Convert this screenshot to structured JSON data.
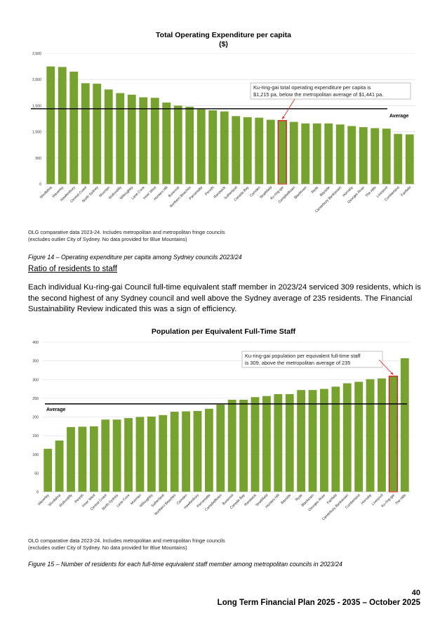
{
  "charts": [
    {
      "title_line1": "Total Operating Expenditure per capita",
      "title_line2": "($)",
      "note_line1": "OLG comparative data 2023-24. Includes metropolitan and metropolitan fringe councils",
      "note_line2": "(excludes outlier City of Sydney. No data provided for Blue Mountains)",
      "caption": "Figure 14 – Operating expenditure per capita among Sydney councils 2023/24",
      "average_label": "Average",
      "annotation_line1": "Ku-ring-gai total operating expenditure per capita is",
      "annotation_line2": "$1,215 pa, below the metropolitan average of $1,441 pa."
    },
    {
      "title_line1": "Population per Equivalent Full-Time Staff",
      "note_line1": "OLG comparative data 2023-24. Includes metropolitan and metropolitan fringe councils",
      "note_line2": "(excludes outlier City of Sydney. No data provided for Blue Mountains)",
      "caption": "Figure 15 – Number of residents for each full-time equivalent staff member among metropolitan councils in 2023/24",
      "average_label": "Average",
      "annotation_line1": "Ku-ring-gai population per equivalent full-time staff",
      "annotation_line2": "is 309, above the metropolitan average of 235"
    }
  ],
  "text": {
    "heading": "Ratio of residents to staff",
    "paragraph": "Each individual Ku-ring-gai Council full-time equivalent staff member in 2023/24 serviced 309 residents, which is the second highest of any Sydney council and well above the Sydney average of 235 residents. The Financial Sustainability Review indicated this was a sign of efficiency.",
    "page_number": "40",
    "footer": "Long Term Financial Plan 2025 - 2035 – October 2025"
  },
  "colors": {
    "bar": "#78a22f",
    "highlight_border": "#e02020",
    "average_line": "#000000",
    "arrow": "#e02020"
  },
  "chart_data": [
    {
      "type": "bar",
      "title": "Total Operating Expenditure per capita ($)",
      "ylim": [
        0,
        2500
      ],
      "yticks": [
        0,
        500,
        1000,
        1500,
        2000,
        2500
      ],
      "yticks_labels": [
        "0",
        "500",
        "1,000",
        "1,500",
        "2,000",
        "2,500"
      ],
      "grid": true,
      "average": 1441,
      "highlight": "Ku-ring-gai",
      "categories": [
        "Woollahra",
        "Waverley",
        "Hawkesbury",
        "Central Coast",
        "North Sydney",
        "Mosman",
        "Wollondilly",
        "Willoughby",
        "Lane Cove",
        "Inner West",
        "Hunters Hill",
        "Burwood",
        "Northern Beaches",
        "Parramatta",
        "Penrith",
        "Randwick",
        "Sutherland",
        "Canada Bay",
        "Camden",
        "Strathfield",
        "Ku-ring-gai",
        "Campbelltown",
        "Blacktown",
        "Ryde",
        "Bayside",
        "Canterbury Bankstown",
        "Hornsby",
        "Georges River",
        "The Hills",
        "Liverpool",
        "Cumberland",
        "Fairfield"
      ],
      "values": [
        2250,
        2240,
        2150,
        1930,
        1920,
        1810,
        1740,
        1710,
        1660,
        1650,
        1560,
        1500,
        1480,
        1430,
        1410,
        1390,
        1300,
        1280,
        1270,
        1230,
        1215,
        1190,
        1160,
        1160,
        1160,
        1140,
        1110,
        1090,
        1070,
        1060,
        960,
        950
      ]
    },
    {
      "type": "bar",
      "title": "Population per Equivalent Full-Time Staff",
      "ylim": [
        0,
        400
      ],
      "yticks": [
        0,
        50,
        100,
        150,
        200,
        250,
        300,
        350,
        400
      ],
      "yticks_labels": [
        "0",
        "50",
        "100",
        "150",
        "200",
        "250",
        "300",
        "350",
        "400"
      ],
      "grid": true,
      "average": 235,
      "highlight": "Ku-ring-gai",
      "categories": [
        "Waverley",
        "Woollahra",
        "Wollondilly",
        "Penrith",
        "Inner West",
        "Central Coast",
        "North Sydney",
        "Lane Cove",
        "Mosman",
        "Willoughby",
        "Sutherland",
        "Northern Beaches",
        "Camden",
        "Hawkesbury",
        "Parramatta",
        "Campbelltown",
        "Burwood",
        "Canada Bay",
        "Randwick",
        "Strathfield",
        "Hunters Hill",
        "Bayside",
        "Ryde",
        "Blacktown",
        "Georges River",
        "Fairfield",
        "Canterbury Bankstown",
        "Cumberland",
        "Hornsby",
        "Liverpool",
        "Ku-ring-gai",
        "The Hills"
      ],
      "values": [
        115,
        137,
        173,
        174,
        175,
        193,
        193,
        197,
        200,
        201,
        205,
        214,
        215,
        216,
        222,
        233,
        246,
        246,
        253,
        256,
        261,
        261,
        272,
        272,
        275,
        281,
        290,
        294,
        301,
        303,
        309,
        357
      ]
    }
  ]
}
